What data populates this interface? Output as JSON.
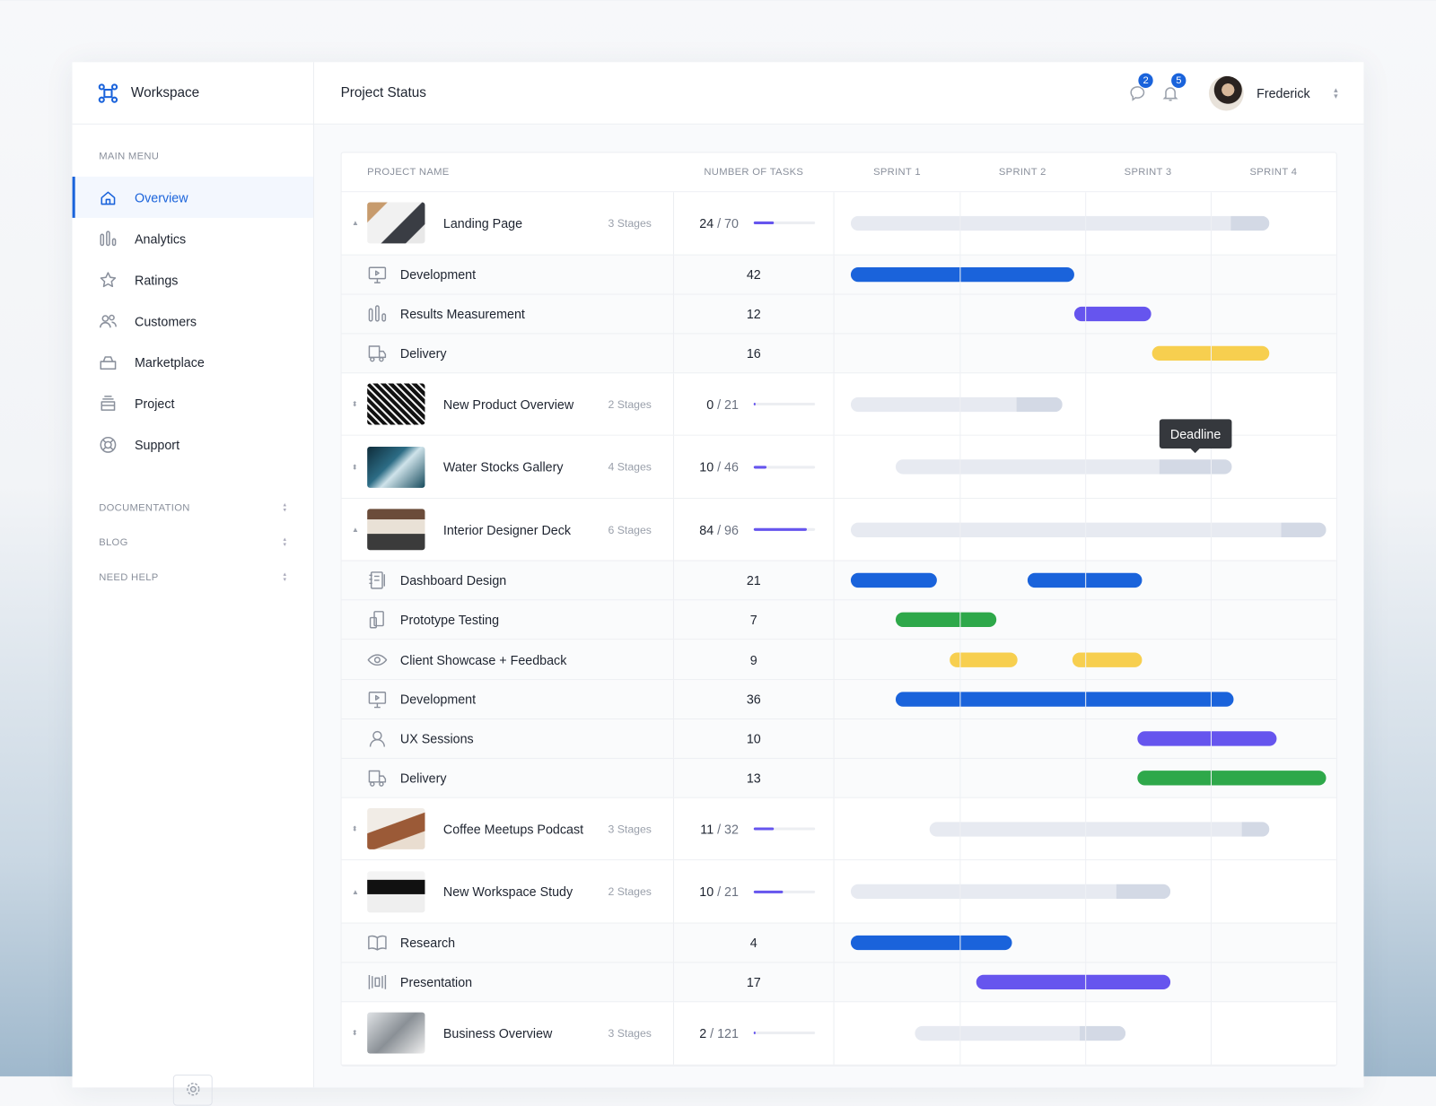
{
  "sidebar": {
    "brand": "Workspace",
    "section": "MAIN MENU",
    "items": [
      {
        "label": "Overview",
        "icon": "home-icon",
        "active": true
      },
      {
        "label": "Analytics",
        "icon": "bar-chart-icon"
      },
      {
        "label": "Ratings",
        "icon": "star-icon"
      },
      {
        "label": "Customers",
        "icon": "users-icon"
      },
      {
        "label": "Marketplace",
        "icon": "bag-icon"
      },
      {
        "label": "Project",
        "icon": "stack-icon"
      },
      {
        "label": "Support",
        "icon": "lifebuoy-icon"
      }
    ],
    "groups": [
      "DOCUMENTATION",
      "BLOG",
      "NEED HELP"
    ]
  },
  "header": {
    "title": "Project Status",
    "messages_count": "2",
    "notifications_count": "5",
    "user": "Frederick"
  },
  "table": {
    "columns": [
      "PROJECT NAME",
      "NUMBER OF TASKS",
      "SPRINT 1",
      "SPRINT 2",
      "SPRINT 3",
      "SPRINT 4"
    ],
    "tooltip": "Deadline"
  },
  "colors": {
    "blue": "#1a63db",
    "purple": "#6655ee",
    "yellow": "#f7cf4f",
    "green": "#2ea84a",
    "summary": "#e7eaf1",
    "deadline": "#d3d9e5"
  },
  "chart_data": {
    "type": "gantt",
    "x_unit": "sprint",
    "xlim": [
      0,
      4
    ],
    "categories": [
      "SPRINT 1",
      "SPRINT 2",
      "SPRINT 3",
      "SPRINT 4"
    ],
    "rows": [
      {
        "kind": "project",
        "name": "Landing Page",
        "stages": "3 Stages",
        "done": "24",
        "total": "70",
        "progress": 0.34,
        "expanded": true,
        "span": [
          0.1,
          3.44
        ],
        "deadline_from": 3.13,
        "thumb": "laptop"
      },
      {
        "kind": "task",
        "name": "Development",
        "icon": "monitor-play-icon",
        "tasks": "42",
        "bars": [
          [
            0.1,
            1.88
          ]
        ],
        "color": "blue"
      },
      {
        "kind": "task",
        "name": "Results Measurement",
        "icon": "bar-chart-icon",
        "tasks": "12",
        "bars": [
          [
            1.88,
            2.5
          ]
        ],
        "color": "purple"
      },
      {
        "kind": "task",
        "name": "Delivery",
        "icon": "truck-icon",
        "tasks": "16",
        "bars": [
          [
            2.5,
            3.44
          ]
        ],
        "color": "yellow"
      },
      {
        "kind": "project",
        "name": "New Product Overview",
        "stages": "2 Stages",
        "done": "0",
        "total": "21",
        "progress": 0,
        "expanded": false,
        "span": [
          0.1,
          1.79
        ],
        "deadline_from": 1.42,
        "thumb": "keyboard"
      },
      {
        "kind": "project",
        "name": "Water Stocks Gallery",
        "stages": "4 Stages",
        "done": "10",
        "total": "46",
        "progress": 0.22,
        "expanded": false,
        "span": [
          0.46,
          3.14
        ],
        "deadline_from": 2.56,
        "thumb": "water",
        "tooltip": true
      },
      {
        "kind": "project",
        "name": "Interior Designer Deck",
        "stages": "6 Stages",
        "done": "84",
        "total": "96",
        "progress": 0.88,
        "expanded": true,
        "span": [
          0.1,
          3.89
        ],
        "deadline_from": 3.53,
        "thumb": "desk"
      },
      {
        "kind": "task",
        "name": "Dashboard Design",
        "icon": "phone-book-icon",
        "tasks": "21",
        "bars": [
          [
            0.1,
            0.79
          ],
          [
            1.51,
            2.42
          ]
        ],
        "color": "blue"
      },
      {
        "kind": "task",
        "name": "Prototype Testing",
        "icon": "devices-icon",
        "tasks": "7",
        "bars": [
          [
            0.46,
            1.26
          ]
        ],
        "color": "green"
      },
      {
        "kind": "task",
        "name": "Client Showcase + Feedback",
        "icon": "eye-icon",
        "tasks": "9",
        "bars": [
          [
            0.89,
            1.43
          ],
          [
            1.87,
            2.42
          ]
        ],
        "color": "yellow"
      },
      {
        "kind": "task",
        "name": "Development",
        "icon": "monitor-play-icon",
        "tasks": "36",
        "bars": [
          [
            0.46,
            3.15
          ]
        ],
        "color": "blue"
      },
      {
        "kind": "task",
        "name": "UX Sessions",
        "icon": "user-icon",
        "tasks": "10",
        "bars": [
          [
            2.39,
            3.5
          ]
        ],
        "color": "purple"
      },
      {
        "kind": "task",
        "name": "Delivery",
        "icon": "truck-icon",
        "tasks": "13",
        "bars": [
          [
            2.39,
            3.89
          ]
        ],
        "color": "green"
      },
      {
        "kind": "project",
        "name": "Coffee Meetups Podcast",
        "stages": "3 Stages",
        "done": "11",
        "total": "32",
        "progress": 0.34,
        "expanded": false,
        "span": [
          0.73,
          3.44
        ],
        "deadline_from": 3.22,
        "thumb": "coffee"
      },
      {
        "kind": "project",
        "name": "New Workspace Study",
        "stages": "2 Stages",
        "done": "10",
        "total": "21",
        "progress": 0.48,
        "expanded": true,
        "span": [
          0.1,
          2.65
        ],
        "deadline_from": 2.22,
        "thumb": "imac"
      },
      {
        "kind": "task",
        "name": "Research",
        "icon": "book-icon",
        "tasks": "4",
        "bars": [
          [
            0.1,
            1.39
          ]
        ],
        "color": "blue"
      },
      {
        "kind": "task",
        "name": "Presentation",
        "icon": "slides-icon",
        "tasks": "17",
        "bars": [
          [
            1.1,
            2.65
          ]
        ],
        "color": "purple"
      },
      {
        "kind": "project",
        "name": "Business Overview",
        "stages": "3 Stages",
        "done": "2",
        "total": "121",
        "progress": 0.02,
        "expanded": false,
        "span": [
          0.61,
          2.29
        ],
        "deadline_from": 1.93,
        "thumb": "office"
      }
    ]
  }
}
